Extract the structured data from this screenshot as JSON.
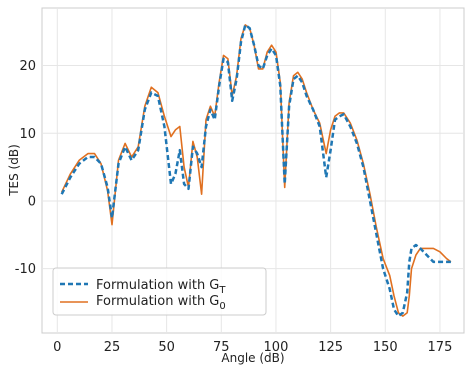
{
  "chart_data": {
    "type": "line",
    "xlabel": "Angle (dB)",
    "ylabel": "TES (dB)",
    "xlim": [
      -7,
      186
    ],
    "ylim": [
      -19.5,
      28.5
    ],
    "xticks": [
      0,
      25,
      50,
      75,
      100,
      125,
      150,
      175
    ],
    "yticks": [
      -10,
      0,
      10,
      20
    ],
    "xtick_labels": [
      "0",
      "25",
      "50",
      "75",
      "100",
      "125",
      "150",
      "175"
    ],
    "ytick_labels": [
      "-10",
      "0",
      "10",
      "20"
    ],
    "grid": true,
    "legend_position": "lower-left",
    "series": [
      {
        "name": "Formulation with G",
        "name_sub": "T",
        "color": "#1f77b4",
        "style": "dashed",
        "x": [
          2,
          6,
          10,
          14,
          17,
          20,
          23,
          25,
          28,
          31,
          34,
          37,
          40,
          43,
          46,
          49,
          52,
          54,
          56,
          58,
          60,
          62,
          64,
          66,
          68,
          70,
          72,
          74,
          76,
          78,
          80,
          82,
          84,
          86,
          88,
          90,
          92,
          94,
          96,
          98,
          100,
          102,
          104,
          106,
          108,
          110,
          112,
          114,
          117,
          120,
          123,
          125,
          127,
          129,
          131,
          134,
          137,
          140,
          143,
          146,
          149,
          152,
          154,
          156,
          158,
          160,
          161,
          162,
          164,
          166,
          169,
          172,
          175,
          178,
          180
        ],
        "y": [
          1.0,
          3.5,
          5.5,
          6.5,
          6.5,
          5.5,
          2.0,
          -2.5,
          5.5,
          8.0,
          6.0,
          7.5,
          13.5,
          16.0,
          15.5,
          11.0,
          2.5,
          4.0,
          7.5,
          2.5,
          1.8,
          8.0,
          7.0,
          5.0,
          11.0,
          13.5,
          12.0,
          17.0,
          21.0,
          20.5,
          14.8,
          18.0,
          23.5,
          26.0,
          25.5,
          23.0,
          20.0,
          19.5,
          21.5,
          22.5,
          21.5,
          17.0,
          2.5,
          14.0,
          18.0,
          18.5,
          17.5,
          15.5,
          13.5,
          11.0,
          3.5,
          7.5,
          12.0,
          12.5,
          12.8,
          11.0,
          8.5,
          5.0,
          0.0,
          -5.0,
          -10.0,
          -13.0,
          -16.0,
          -17.0,
          -16.5,
          -13.5,
          -9.0,
          -7.0,
          -6.5,
          -7.0,
          -8.0,
          -9.0,
          -9.0,
          -9.0,
          -9.0
        ]
      },
      {
        "name": "Formulation with G",
        "name_sub": "0",
        "color": "#e07020",
        "style": "solid",
        "x": [
          2,
          6,
          10,
          14,
          17,
          20,
          23,
          25,
          28,
          31,
          34,
          37,
          40,
          43,
          46,
          49,
          52,
          54,
          56,
          58,
          60,
          62,
          64,
          66,
          68,
          70,
          72,
          74,
          76,
          78,
          80,
          82,
          84,
          86,
          88,
          90,
          92,
          94,
          96,
          98,
          100,
          102,
          104,
          106,
          108,
          110,
          112,
          114,
          117,
          120,
          123,
          125,
          127,
          129,
          131,
          134,
          137,
          140,
          143,
          146,
          149,
          152,
          154,
          156,
          158,
          160,
          161,
          162,
          164,
          166,
          169,
          172,
          175,
          178,
          180
        ],
        "y": [
          1.3,
          4.0,
          6.0,
          7.0,
          7.0,
          5.5,
          1.5,
          -3.5,
          6.0,
          8.5,
          6.5,
          8.0,
          14.0,
          16.8,
          16.0,
          12.5,
          9.5,
          10.5,
          11.0,
          5.0,
          2.0,
          8.8,
          6.5,
          1.0,
          12.0,
          14.0,
          12.5,
          17.5,
          21.5,
          21.0,
          15.5,
          18.5,
          24.0,
          26.0,
          25.5,
          23.0,
          19.5,
          19.5,
          22.0,
          23.0,
          22.0,
          17.5,
          2.0,
          14.5,
          18.5,
          19.0,
          18.0,
          16.0,
          13.5,
          11.5,
          7.0,
          10.5,
          12.5,
          13.0,
          13.0,
          11.5,
          9.0,
          5.5,
          1.0,
          -4.0,
          -8.5,
          -11.0,
          -14.0,
          -16.5,
          -17.0,
          -16.5,
          -14.0,
          -10.0,
          -8.0,
          -7.0,
          -7.0,
          -7.0,
          -7.5,
          -8.5,
          -9.0
        ]
      }
    ]
  }
}
